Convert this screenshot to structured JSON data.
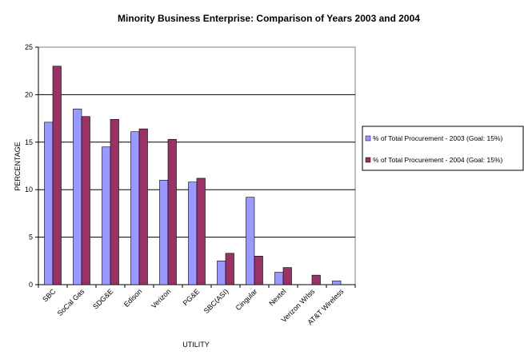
{
  "chart_data": {
    "type": "bar",
    "title": "Minority Business Enterprise: Comparison of Years 2003 and 2004",
    "xlabel": "UTILITY",
    "ylabel": "PERCENTAGE",
    "ylim": [
      0,
      25
    ],
    "yticks": [
      0,
      5,
      10,
      15,
      20,
      25
    ],
    "grid": true,
    "legend_position": "right",
    "categories": [
      "SBC",
      "SoCal Gas",
      "SDG&E",
      "Edison",
      "Verizon",
      "PG&E",
      "SBC(ASI)",
      "Cingular",
      "Nextel",
      "Verizon Wrlss",
      "AT&T Wireless"
    ],
    "series": [
      {
        "name": "% of Total Procurement - 2003 (Goal: 15%)",
        "color": "#9999ff",
        "values": [
          17.1,
          18.5,
          14.5,
          16.1,
          11.0,
          10.8,
          2.5,
          9.2,
          1.3,
          0,
          0.4
        ]
      },
      {
        "name": "% of Total Procurement - 2004 (Goal: 15%)",
        "color": "#993366",
        "values": [
          23.0,
          17.7,
          17.4,
          16.4,
          15.3,
          11.2,
          3.3,
          3.0,
          1.8,
          1.0,
          0
        ]
      }
    ]
  }
}
